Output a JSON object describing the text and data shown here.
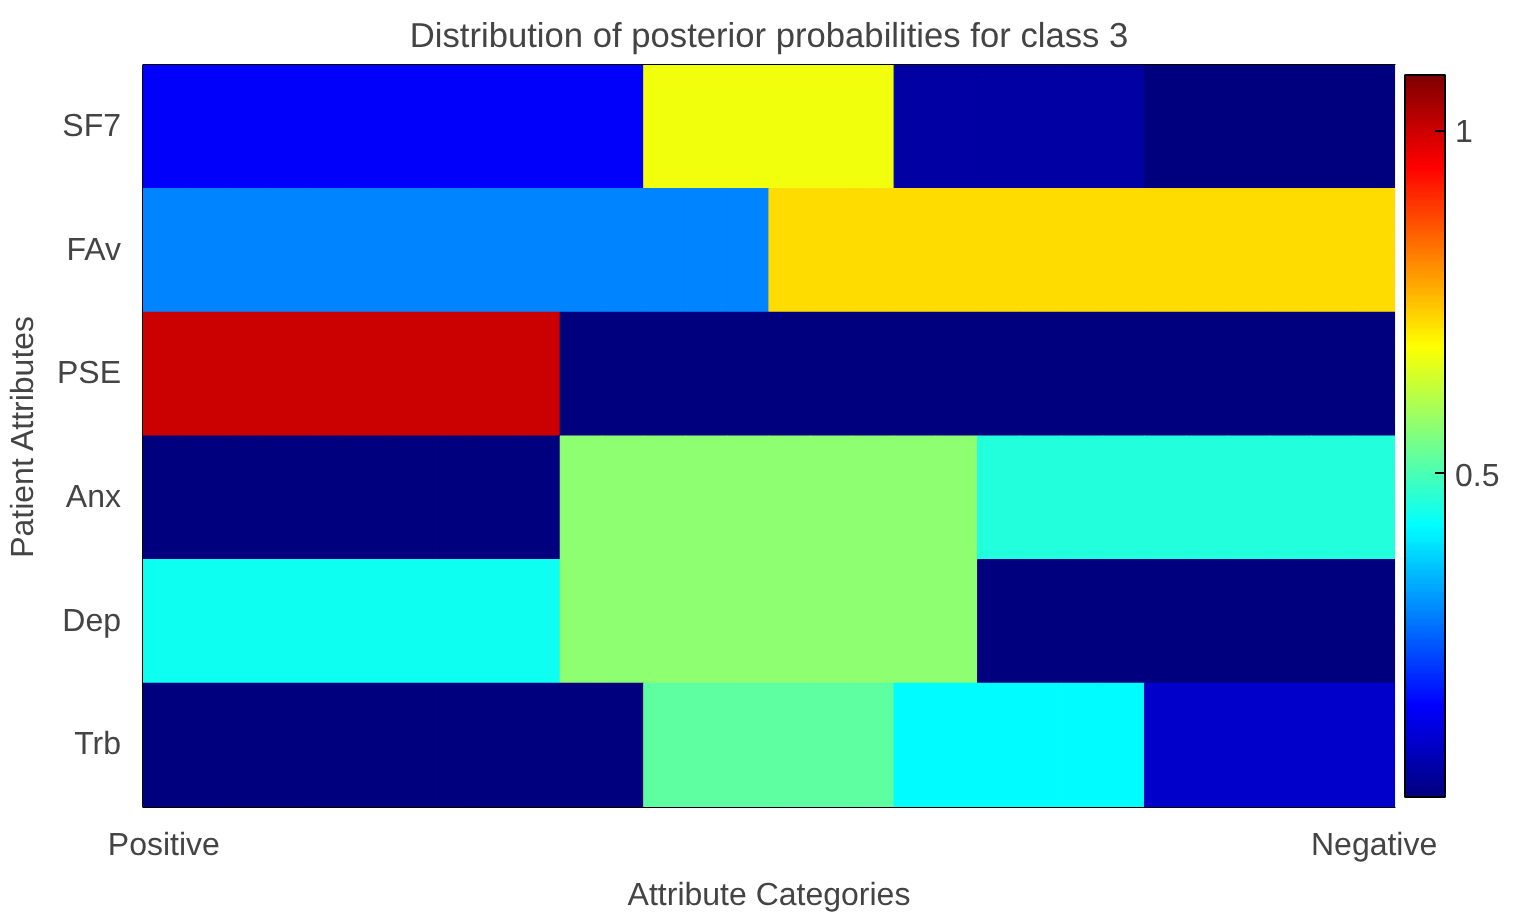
{
  "chart_data": {
    "type": "heatmap",
    "title": "Distribution of posterior probabilities for class 3",
    "xlabel": "Attribute Categories",
    "ylabel": "Patient Attributes",
    "categories": [
      "Positive",
      null,
      null,
      null,
      null,
      null,
      null,
      null,
      null,
      null,
      null,
      null,
      null,
      null,
      null,
      null,
      null,
      null,
      null,
      null,
      null,
      null,
      null,
      null,
      null,
      null,
      null,
      null,
      null,
      "Negative"
    ],
    "y_categories": [
      "SF7",
      "FAv",
      "PSE",
      "Anx",
      "Dep",
      "Trb"
    ],
    "cells": [
      [
        0.16,
        0.16,
        0.16,
        0.16,
        0.16,
        0.16,
        0.16,
        0.16,
        0.16,
        0.16,
        0.16,
        0.16,
        0.67,
        0.67,
        0.67,
        0.67,
        0.67,
        0.67,
        0.07,
        0.07,
        0.07,
        0.07,
        0.07,
        0.07,
        0.03,
        0.03,
        0.03,
        0.03,
        0.03,
        0.03
      ],
      [
        0.3,
        0.3,
        0.3,
        0.3,
        0.3,
        0.3,
        0.3,
        0.3,
        0.3,
        0.3,
        0.3,
        0.3,
        0.3,
        0.3,
        0.3,
        0.72,
        0.72,
        0.72,
        0.72,
        0.72,
        0.72,
        0.72,
        0.72,
        0.72,
        0.72,
        0.72,
        0.72,
        0.72,
        0.72,
        0.72
      ],
      [
        1.0,
        1.0,
        1.0,
        1.0,
        1.0,
        1.0,
        1.0,
        1.0,
        1.0,
        1.0,
        0.03,
        0.03,
        0.03,
        0.03,
        0.03,
        0.03,
        0.03,
        0.03,
        0.03,
        0.03,
        0.03,
        0.03,
        0.03,
        0.03,
        0.03,
        0.03,
        0.03,
        0.03,
        0.03,
        0.03
      ],
      [
        0.03,
        0.03,
        0.03,
        0.03,
        0.03,
        0.03,
        0.03,
        0.03,
        0.03,
        0.03,
        0.57,
        0.57,
        0.57,
        0.57,
        0.57,
        0.57,
        0.57,
        0.57,
        0.57,
        0.57,
        0.46,
        0.46,
        0.46,
        0.46,
        0.46,
        0.46,
        0.46,
        0.46,
        0.46,
        0.46
      ],
      [
        0.44,
        0.44,
        0.44,
        0.44,
        0.44,
        0.44,
        0.44,
        0.44,
        0.44,
        0.44,
        0.57,
        0.57,
        0.57,
        0.57,
        0.57,
        0.57,
        0.57,
        0.57,
        0.57,
        0.57,
        0.03,
        0.03,
        0.03,
        0.03,
        0.03,
        0.03,
        0.03,
        0.03,
        0.03,
        0.03
      ],
      [
        0.03,
        0.03,
        0.03,
        0.03,
        0.03,
        0.03,
        0.03,
        0.03,
        0.03,
        0.03,
        0.03,
        0.03,
        0.52,
        0.52,
        0.52,
        0.52,
        0.52,
        0.52,
        0.42,
        0.42,
        0.42,
        0.42,
        0.42,
        0.42,
        0.11,
        0.11,
        0.11,
        0.11,
        0.11,
        0.11
      ]
    ],
    "clim": [
      0.03,
      1.08
    ],
    "cticks": [
      0.5,
      1
    ]
  }
}
